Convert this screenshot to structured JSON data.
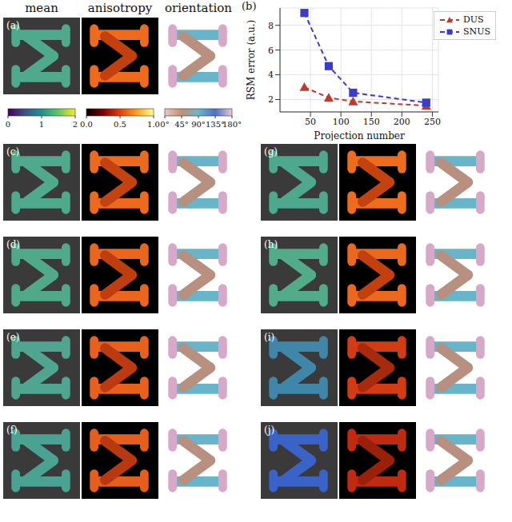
{
  "column_titles": [
    "mean",
    "anisotropy",
    "orientation"
  ],
  "colorbars": [
    {
      "range": [
        0,
        2
      ],
      "ticks": [
        0,
        1,
        2
      ]
    },
    {
      "range": [
        0,
        1
      ],
      "ticks": [
        {
          "value": 0,
          "label": "0.0"
        },
        {
          "value": 0.5,
          "label": "0.5"
        },
        {
          "value": 1,
          "label": "1.0"
        }
      ]
    },
    {
      "range": [
        0,
        180
      ],
      "ticks": [
        {
          "value": 0,
          "label": "0°"
        },
        {
          "value": 45,
          "label": "45°"
        },
        {
          "value": 90,
          "label": "90°"
        },
        {
          "value": 135,
          "label": "135°"
        },
        {
          "value": 180,
          "label": "180°"
        }
      ]
    }
  ],
  "image_panels": [
    {
      "label": "(a)"
    },
    {
      "label": "(c)"
    },
    {
      "label": "(d)"
    },
    {
      "label": "(e)"
    },
    {
      "label": "(f)"
    },
    {
      "label": "(g)"
    },
    {
      "label": "(h)"
    },
    {
      "label": "(i)"
    },
    {
      "label": "(j)"
    }
  ],
  "chart_label": "(b)",
  "chart_data": {
    "type": "line",
    "x_label": "Projection number",
    "y_label": "RSM error (a.u.)",
    "x": [
      40,
      80,
      120,
      240
    ],
    "series": [
      {
        "name": "DUS",
        "color": "#c0392b",
        "marker": "triangle",
        "line_style": "dashed",
        "values": [
          3.0,
          2.15,
          1.85,
          1.5
        ]
      },
      {
        "name": "SNUS",
        "color": "#3b3bcc",
        "marker": "square",
        "line_style": "dashed",
        "values": [
          9.0,
          4.7,
          2.55,
          1.75
        ]
      }
    ],
    "xlim": [
      0,
      260
    ],
    "xticks": [
      50,
      100,
      150,
      200,
      250
    ],
    "ylim": [
      1,
      9.4
    ],
    "yticks": [
      2,
      4,
      6,
      8
    ],
    "grid": true,
    "legend": "upper right"
  }
}
